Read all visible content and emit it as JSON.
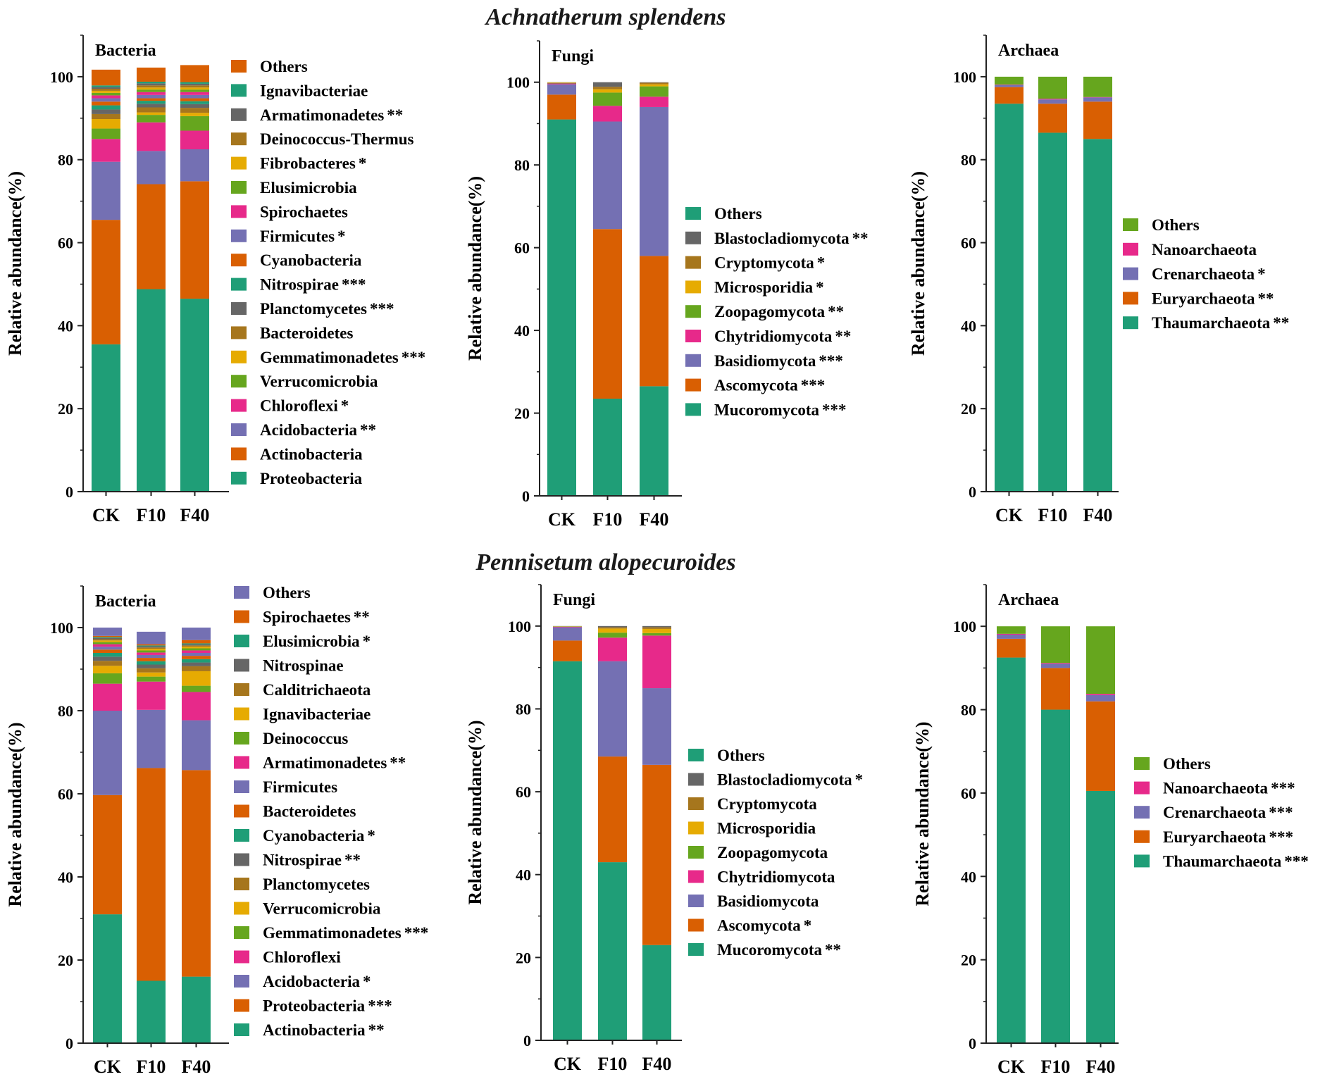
{
  "colors": [
    "#1f9e77",
    "#d95f02",
    "#7470b3",
    "#e7298a",
    "#66a61e",
    "#e6ab02",
    "#a6761d",
    "#666666"
  ],
  "species": [
    "Achnatherum splendens",
    "Pennisetum alopecuroides"
  ],
  "chart_data": [
    {
      "type": "bar",
      "stacked": true,
      "title": "Bacteria",
      "species": "Achnatherum splendens",
      "ylabel": "Relative abundance(%)",
      "ylim": [
        0,
        110
      ],
      "yticks": [
        0,
        20,
        40,
        60,
        80,
        100
      ],
      "categories": [
        "CK",
        "F10",
        "F40"
      ],
      "series": [
        {
          "name": "Proteobacteria",
          "sig": "",
          "values": [
            35.5,
            48.8,
            46.5
          ]
        },
        {
          "name": "Actinobacteria",
          "sig": "",
          "values": [
            30,
            25.3,
            28.3
          ]
        },
        {
          "name": "Acidobacteria",
          "sig": "**",
          "values": [
            14,
            8,
            7.7
          ]
        },
        {
          "name": "Chloroflexi",
          "sig": "*",
          "values": [
            5.5,
            6.9,
            4.5
          ]
        },
        {
          "name": "Verrucomicrobia",
          "sig": "",
          "values": [
            2.5,
            1.8,
            3.5
          ]
        },
        {
          "name": "Gemmatimonadetes",
          "sig": "***",
          "values": [
            2.3,
            0.6,
            0.8
          ]
        },
        {
          "name": "Bacteroidetes",
          "sig": "",
          "values": [
            1.2,
            1.2,
            1.2
          ]
        },
        {
          "name": "Planctomycetes",
          "sig": "***",
          "values": [
            1.1,
            0.9,
            0.9
          ]
        },
        {
          "name": "Nitrospirae",
          "sig": "***",
          "values": [
            1,
            0.7,
            0.7
          ]
        },
        {
          "name": "Cyanobacteria",
          "sig": "",
          "values": [
            0.9,
            0.6,
            0.7
          ]
        },
        {
          "name": "Firmicutes",
          "sig": "*",
          "values": [
            0.8,
            0.8,
            0.8
          ]
        },
        {
          "name": "Spirochaetes",
          "sig": "",
          "values": [
            0.7,
            0.7,
            0.7
          ]
        },
        {
          "name": "Elusimicrobia",
          "sig": "",
          "values": [
            0.6,
            0.6,
            0.6
          ]
        },
        {
          "name": "Fibrobacteres",
          "sig": "*",
          "values": [
            0.5,
            0.5,
            0.5
          ]
        },
        {
          "name": "Deinococcus-Thermus",
          "sig": "",
          "values": [
            0.5,
            0.5,
            0.5
          ]
        },
        {
          "name": "Armatimonadetes",
          "sig": "**",
          "values": [
            0.4,
            0.5,
            0.4
          ]
        },
        {
          "name": "Ignavibacteriae",
          "sig": "",
          "values": [
            0.4,
            0.4,
            0.4
          ]
        },
        {
          "name": "Others",
          "sig": "",
          "values": [
            3.8,
            3.4,
            4.1
          ]
        }
      ]
    },
    {
      "type": "bar",
      "stacked": true,
      "title": "Fungi",
      "species": "Achnatherum splendens",
      "ylabel": "Relative abundance(%)",
      "ylim": [
        0,
        110
      ],
      "yticks": [
        0,
        20,
        40,
        60,
        80,
        100
      ],
      "categories": [
        "CK",
        "F10",
        "F40"
      ],
      "series": [
        {
          "name": "Mucoromycota",
          "sig": "***",
          "values": [
            91,
            23.5,
            26.5
          ]
        },
        {
          "name": "Ascomycota",
          "sig": "***",
          "values": [
            6,
            41,
            31.5
          ]
        },
        {
          "name": "Basidiomycota",
          "sig": "***",
          "values": [
            2.5,
            26,
            36
          ]
        },
        {
          "name": "Chytridiomycota",
          "sig": "**",
          "values": [
            0.2,
            3.8,
            2.5
          ]
        },
        {
          "name": "Zoopagomycota",
          "sig": "**",
          "values": [
            0.1,
            3.2,
            2.5
          ]
        },
        {
          "name": "Microsporidia",
          "sig": "*",
          "values": [
            0.1,
            0.8,
            0.5
          ]
        },
        {
          "name": "Cryptomycota",
          "sig": "*",
          "values": [
            0.05,
            0.6,
            0.4
          ]
        },
        {
          "name": "Blastocladiomycota",
          "sig": "**",
          "values": [
            0.05,
            1.1,
            0.1
          ]
        },
        {
          "name": "Others",
          "sig": "",
          "values": [
            0,
            0,
            0
          ]
        }
      ]
    },
    {
      "type": "bar",
      "stacked": true,
      "title": "Archaea",
      "species": "Achnatherum splendens",
      "ylabel": "Relative abundance(%)",
      "ylim": [
        0,
        110
      ],
      "yticks": [
        0,
        20,
        40,
        60,
        80,
        100
      ],
      "categories": [
        "CK",
        "F10",
        "F40"
      ],
      "series": [
        {
          "name": "Thaumarchaeota",
          "sig": "**",
          "values": [
            93.5,
            86.5,
            85
          ]
        },
        {
          "name": "Euryarchaeota",
          "sig": "**",
          "values": [
            4,
            7,
            9
          ]
        },
        {
          "name": "Crenarchaeota",
          "sig": "*",
          "values": [
            0.5,
            1,
            1
          ]
        },
        {
          "name": "Nanoarchaeota",
          "sig": "",
          "values": [
            0.1,
            0.2,
            0.1
          ]
        },
        {
          "name": "Others",
          "sig": "",
          "values": [
            1.9,
            5.3,
            4.9
          ]
        }
      ]
    },
    {
      "type": "bar",
      "stacked": true,
      "title": "Bacteria",
      "species": "Pennisetum alopecuroides",
      "ylabel": "Relative abundance(%)",
      "ylim": [
        0,
        110
      ],
      "yticks": [
        0,
        20,
        40,
        60,
        80,
        100
      ],
      "categories": [
        "CK",
        "F10",
        "F40"
      ],
      "series": [
        {
          "name": "Actinobacteria",
          "sig": "**",
          "values": [
            31,
            15,
            16
          ]
        },
        {
          "name": "Proteobacteria",
          "sig": "***",
          "values": [
            28.7,
            51.2,
            49.7
          ]
        },
        {
          "name": "Acidobacteria",
          "sig": "*",
          "values": [
            20.3,
            14,
            12
          ]
        },
        {
          "name": "Chloroflexi",
          "sig": "",
          "values": [
            6.5,
            6.8,
            6.8
          ]
        },
        {
          "name": "Gemmatimonadetes",
          "sig": "***",
          "values": [
            2.5,
            1.2,
            1.5
          ]
        },
        {
          "name": "Verrucomicrobia",
          "sig": "",
          "values": [
            1.8,
            1,
            3.5
          ]
        },
        {
          "name": "Planctomycetes",
          "sig": "",
          "values": [
            1.2,
            1,
            1.2
          ]
        },
        {
          "name": "Nitrospirae",
          "sig": "**",
          "values": [
            1,
            0.9,
            0.9
          ]
        },
        {
          "name": "Cyanobacteria",
          "sig": "*",
          "values": [
            0.9,
            0.8,
            0.8
          ]
        },
        {
          "name": "Bacteroidetes",
          "sig": "",
          "values": [
            0.8,
            0.8,
            0.8
          ]
        },
        {
          "name": "Firmicutes",
          "sig": "",
          "values": [
            0.7,
            0.7,
            0.7
          ]
        },
        {
          "name": "Armatimonadetes",
          "sig": "**",
          "values": [
            0.6,
            0.6,
            0.6
          ]
        },
        {
          "name": "Deinococcus",
          "sig": "",
          "values": [
            0.5,
            0.5,
            0.5
          ]
        },
        {
          "name": "Ignavibacteriae",
          "sig": "",
          "values": [
            0.4,
            0.4,
            0.4
          ]
        },
        {
          "name": "Calditrichaeota",
          "sig": "",
          "values": [
            0.3,
            0.3,
            0.3
          ]
        },
        {
          "name": "Nitrospinae",
          "sig": "",
          "values": [
            0.3,
            0.3,
            0.3
          ]
        },
        {
          "name": "Elusimicrobia",
          "sig": "*",
          "values": [
            0.2,
            0.2,
            0.2
          ]
        },
        {
          "name": "Spirochaetes",
          "sig": "**",
          "values": [
            0.3,
            0.3,
            0.8
          ]
        },
        {
          "name": "Others",
          "sig": "",
          "values": [
            2,
            3,
            3
          ]
        }
      ]
    },
    {
      "type": "bar",
      "stacked": true,
      "title": "Fungi",
      "species": "Pennisetum alopecuroides",
      "ylabel": "Relative abundance(%)",
      "ylim": [
        0,
        110
      ],
      "yticks": [
        0,
        20,
        40,
        60,
        80,
        100
      ],
      "categories": [
        "CK",
        "F10",
        "F40"
      ],
      "series": [
        {
          "name": "Mucoromycota",
          "sig": "**",
          "values": [
            91.5,
            43,
            23
          ]
        },
        {
          "name": "Ascomycota",
          "sig": "*",
          "values": [
            5,
            25.5,
            43.5
          ]
        },
        {
          "name": "Basidiomycota",
          "sig": "",
          "values": [
            3.2,
            23,
            18.5
          ]
        },
        {
          "name": "Chytridiomycota",
          "sig": "",
          "values": [
            0.1,
            5.7,
            12.7
          ]
        },
        {
          "name": "Zoopagomycota",
          "sig": "",
          "values": [
            0.05,
            1.2,
            0.6
          ]
        },
        {
          "name": "Microsporidia",
          "sig": "",
          "values": [
            0.05,
            1,
            1
          ]
        },
        {
          "name": "Cryptomycota",
          "sig": "",
          "values": [
            0.05,
            0.3,
            0.4
          ]
        },
        {
          "name": "Blastocladiomycota",
          "sig": "*",
          "values": [
            0.05,
            0.3,
            0.3
          ]
        },
        {
          "name": "Others",
          "sig": "",
          "values": [
            0,
            0,
            0
          ]
        }
      ]
    },
    {
      "type": "bar",
      "stacked": true,
      "title": "Archaea",
      "species": "Pennisetum alopecuroides",
      "ylabel": "Relative abundance(%)",
      "ylim": [
        0,
        110
      ],
      "yticks": [
        0,
        20,
        40,
        60,
        80,
        100
      ],
      "categories": [
        "CK",
        "F10",
        "F40"
      ],
      "series": [
        {
          "name": "Thaumarchaeota",
          "sig": "***",
          "values": [
            92.5,
            80,
            60.5
          ]
        },
        {
          "name": "Euryarchaeota",
          "sig": "***",
          "values": [
            4.5,
            10,
            21.5
          ]
        },
        {
          "name": "Crenarchaeota",
          "sig": "***",
          "values": [
            1,
            1,
            1.5
          ]
        },
        {
          "name": "Nanoarchaeota",
          "sig": "***",
          "values": [
            0.2,
            0.2,
            0.3
          ]
        },
        {
          "name": "Others",
          "sig": "",
          "values": [
            1.8,
            8.8,
            16.2
          ]
        }
      ]
    }
  ]
}
